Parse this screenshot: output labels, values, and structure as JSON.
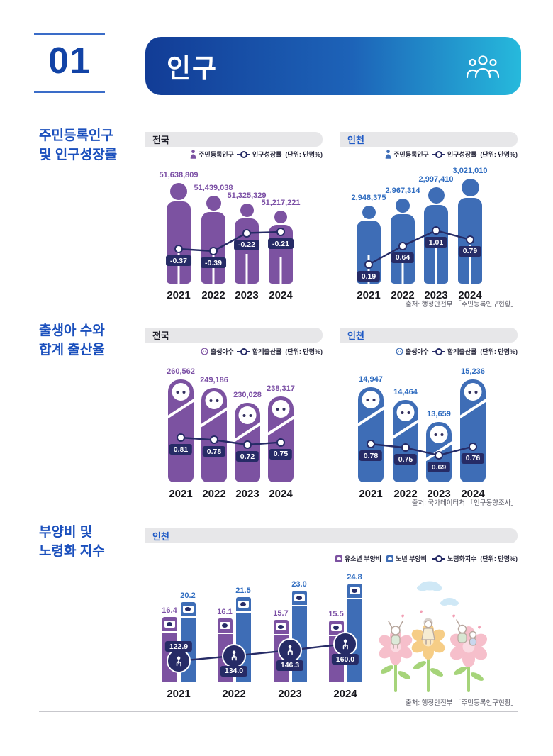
{
  "header": {
    "number": "01",
    "title": "인구"
  },
  "colors": {
    "primary_blue": "#1b50bd",
    "navy": "#262b66",
    "purple_bar": "#7c52a1",
    "purple_text": "#7b4fa5",
    "blue_bar": "#3e6db6",
    "blue_text": "#2f6cc0",
    "panel_bg": "#e7e7e9",
    "banner_gradient": [
      "#123c96",
      "#26b9dc"
    ]
  },
  "sections": [
    {
      "title_lines": [
        "주민등록인구",
        "및 인구성장률"
      ],
      "source": "출처: 행정안전부 「주민등록인구현황」"
    },
    {
      "title_lines": [
        "출생아 수와",
        "합계 출산율"
      ],
      "source": "출처: 국가데이터처 「인구동향조사」"
    },
    {
      "title_lines": [
        "부양비 및",
        "노령화 지수"
      ],
      "source": "출처: 행정안전부 「주민등록인구현황」"
    }
  ],
  "chart_data": [
    {
      "type": "bar",
      "style": "person-pictogram-with-line",
      "panel_label": "전국",
      "legend": {
        "bar_label": "주민등록인구",
        "line_label": "인구성장률",
        "unit": "(단위: 만명%)"
      },
      "categories": [
        "2021",
        "2022",
        "2023",
        "2024"
      ],
      "bar_values": [
        51638809,
        51439038,
        51325329,
        51217221
      ],
      "bar_labels": [
        "51,638,809",
        "51,439,038",
        "51,325,329",
        "51,217,221"
      ],
      "line_values": [
        -0.37,
        -0.39,
        -0.22,
        -0.21
      ],
      "line_labels": [
        "-0.37",
        "-0.39",
        "-0.22",
        "-0.21"
      ],
      "color": "#7c52a1",
      "value_color": "#7b4fa5"
    },
    {
      "type": "bar",
      "style": "person-pictogram-with-line",
      "panel_label": "인천",
      "legend": {
        "bar_label": "주민등록인구",
        "line_label": "인구성장률",
        "unit": "(단위: 만명%)"
      },
      "categories": [
        "2021",
        "2022",
        "2023",
        "2024"
      ],
      "bar_values": [
        2948375,
        2967314,
        2997410,
        3021010
      ],
      "bar_labels": [
        "2,948,375",
        "2,967,314",
        "2,997,410",
        "3,021,010"
      ],
      "line_values": [
        0.19,
        0.64,
        1.01,
        0.79
      ],
      "line_labels": [
        "0.19",
        "0.64",
        "1.01",
        "0.79"
      ],
      "color": "#3e6db6",
      "value_color": "#2f6cc0"
    },
    {
      "type": "bar",
      "style": "baby-pictogram-with-line",
      "panel_label": "전국",
      "legend": {
        "bar_label": "출생아수",
        "line_label": "합계출산률",
        "unit": "(단위: 만명%)"
      },
      "categories": [
        "2021",
        "2022",
        "2023",
        "2024"
      ],
      "bar_values": [
        260562,
        249186,
        230028,
        238317
      ],
      "bar_labels": [
        "260,562",
        "249,186",
        "230,028",
        "238,317"
      ],
      "line_values": [
        0.81,
        0.78,
        0.72,
        0.75
      ],
      "line_labels": [
        "0.81",
        "0.78",
        "0.72",
        "0.75"
      ],
      "color": "#7c52a1",
      "value_color": "#7b4fa5"
    },
    {
      "type": "bar",
      "style": "baby-pictogram-with-line",
      "panel_label": "인천",
      "legend": {
        "bar_label": "출생아수",
        "line_label": "합계출산률",
        "unit": "(단위: 만명%)"
      },
      "categories": [
        "2021",
        "2022",
        "2023",
        "2024"
      ],
      "bar_values": [
        14947,
        14464,
        13659,
        15236
      ],
      "bar_labels": [
        "14,947",
        "14,464",
        "13,659",
        "15,236"
      ],
      "line_values": [
        0.78,
        0.75,
        0.69,
        0.76
      ],
      "line_labels": [
        "0.78",
        "0.75",
        "0.69",
        "0.76"
      ],
      "color": "#3e6db6",
      "value_color": "#2f6cc0"
    },
    {
      "type": "bar",
      "style": "grouped-bar-with-line",
      "panel_label": "인천",
      "legend": {
        "youth_label": "유소년 부양비",
        "elderly_label": "노년 부양비",
        "line_label": "노령화지수",
        "unit": "(단위: 만명%)"
      },
      "categories": [
        "2021",
        "2022",
        "2023",
        "2024"
      ],
      "series": [
        {
          "name": "유소년 부양비",
          "color": "#7c52a1",
          "value_color": "#7b4fa5",
          "values": [
            16.4,
            16.1,
            15.7,
            15.5
          ],
          "labels": [
            "16.4",
            "16.1",
            "15.7",
            "15.5"
          ]
        },
        {
          "name": "노년 부양비",
          "color": "#3e6db6",
          "value_color": "#2f6cc0",
          "values": [
            20.2,
            21.5,
            23.0,
            24.8
          ],
          "labels": [
            "20.2",
            "21.5",
            "23.0",
            "24.8"
          ]
        }
      ],
      "line": {
        "name": "노령화지수",
        "values": [
          122.9,
          134.0,
          146.3,
          160.0
        ],
        "labels": [
          "122.9",
          "134.0",
          "146.3",
          "160.0"
        ]
      }
    }
  ]
}
